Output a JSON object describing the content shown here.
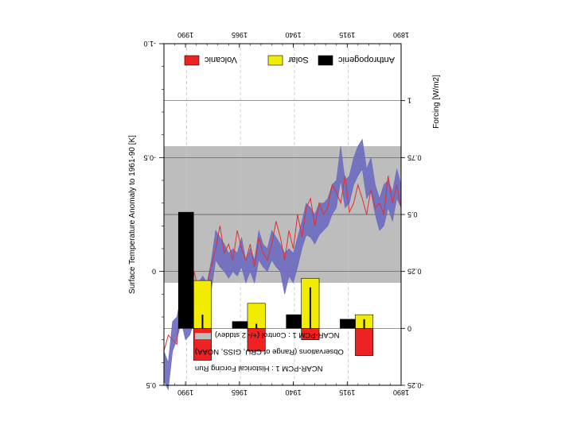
{
  "chart_data": {
    "type": "line",
    "orientation": "rotated-180",
    "x_range": [
      1890,
      2000
    ],
    "x_ticks": [
      "1890",
      "1915",
      "1940",
      "1965",
      "1990"
    ],
    "left_axis": {
      "label": "Surface Temperature Anomaly to 1961-90 [K]",
      "range": [
        -1.0,
        0.5
      ],
      "ticks": [
        "-1.0",
        "-0.5",
        "0",
        "0.5"
      ]
    },
    "right_axis": {
      "label": "Forcing [W/m2]",
      "range": [
        -0.25,
        1.25
      ],
      "ticks": [
        "-0.25",
        "0",
        "0.25",
        "0.5",
        "0.75",
        "1"
      ]
    },
    "control_band": {
      "range_k": [
        -0.55,
        0.05
      ],
      "color": "#bdbdbd"
    },
    "legend_top": [
      {
        "label": "Volcanic",
        "color": "#ee2222"
      },
      {
        "label": "Solar",
        "color": "#f2ec00"
      },
      {
        "label": "Anthropogenic",
        "color": "#000000"
      }
    ],
    "legend_bottom": [
      {
        "label": "NCAR-PCM 1 : Control (+/- 2 stddev)",
        "color": "#bdbdbd"
      },
      {
        "label": "Observations (Range of CRU, GISS, NOAA)",
        "color": "#6a6ac0"
      },
      {
        "label": "NCAR-PCM 1 : Historical Forcing Run",
        "color": "#e03030"
      }
    ],
    "forcing_periods": [
      {
        "start": 1900,
        "end": 1925,
        "volcanic": -0.12,
        "solar": 0.06,
        "anthropogenic": 0.04,
        "err": 0.04
      },
      {
        "start": 1925,
        "end": 1950,
        "volcanic": -0.05,
        "solar": 0.22,
        "anthropogenic": 0.06,
        "err": 0.18
      },
      {
        "start": 1950,
        "end": 1975,
        "volcanic": -0.1,
        "solar": 0.11,
        "anthropogenic": 0.03,
        "err": 0.02
      },
      {
        "start": 1975,
        "end": 2000,
        "volcanic": -0.14,
        "solar": 0.21,
        "anthropogenic": 0.51,
        "err": 0.06
      }
    ],
    "series": [
      {
        "name": "Observations (Range of CRU, GISS, NOAA)",
        "color": "#6a6ac0",
        "x": [
          1890,
          1892,
          1894,
          1896,
          1898,
          1900,
          1902,
          1904,
          1906,
          1908,
          1910,
          1912,
          1914,
          1916,
          1918,
          1920,
          1922,
          1924,
          1926,
          1928,
          1930,
          1932,
          1934,
          1936,
          1938,
          1940,
          1942,
          1944,
          1946,
          1948,
          1950,
          1952,
          1954,
          1956,
          1958,
          1960,
          1962,
          1964,
          1966,
          1968,
          1970,
          1972,
          1974,
          1976,
          1978,
          1980,
          1982,
          1984,
          1986,
          1988,
          1990,
          1992,
          1994,
          1996,
          1998,
          2000
        ],
        "low": [
          -0.38,
          -0.45,
          -0.35,
          -0.4,
          -0.38,
          -0.32,
          -0.38,
          -0.5,
          -0.45,
          -0.58,
          -0.55,
          -0.5,
          -0.42,
          -0.4,
          -0.55,
          -0.4,
          -0.38,
          -0.32,
          -0.3,
          -0.3,
          -0.25,
          -0.28,
          -0.3,
          -0.22,
          -0.15,
          -0.08,
          -0.1,
          -0.08,
          -0.12,
          -0.15,
          -0.18,
          -0.1,
          -0.12,
          -0.18,
          -0.05,
          -0.1,
          -0.05,
          -0.15,
          -0.08,
          -0.1,
          -0.08,
          -0.12,
          -0.15,
          -0.18,
          -0.05,
          0.05,
          0.02,
          0.05,
          0.1,
          0.15,
          0.18,
          0.1,
          0.2,
          0.22,
          0.4,
          0.35
        ],
        "high": [
          -0.28,
          -0.32,
          -0.22,
          -0.28,
          -0.2,
          -0.18,
          -0.25,
          -0.35,
          -0.32,
          -0.45,
          -0.42,
          -0.38,
          -0.3,
          -0.28,
          -0.4,
          -0.28,
          -0.25,
          -0.2,
          -0.18,
          -0.16,
          -0.12,
          -0.15,
          -0.16,
          -0.1,
          -0.02,
          0.05,
          0.02,
          0.1,
          0.0,
          -0.02,
          -0.05,
          0.0,
          -0.02,
          -0.05,
          0.05,
          0.0,
          0.05,
          -0.02,
          0.02,
          0.0,
          0.03,
          0.0,
          -0.02,
          -0.05,
          0.08,
          0.18,
          0.12,
          0.15,
          0.22,
          0.28,
          0.3,
          0.22,
          0.3,
          0.35,
          0.52,
          0.48
        ]
      },
      {
        "name": "NCAR-PCM 1 : Historical Forcing Run",
        "color": "#e03030",
        "x": [
          1890,
          1892,
          1894,
          1896,
          1898,
          1900,
          1902,
          1904,
          1906,
          1908,
          1910,
          1912,
          1914,
          1916,
          1918,
          1920,
          1922,
          1924,
          1926,
          1928,
          1930,
          1932,
          1934,
          1936,
          1938,
          1940,
          1942,
          1944,
          1946,
          1948,
          1950,
          1952,
          1954,
          1956,
          1958,
          1960,
          1962,
          1964,
          1966,
          1968,
          1970,
          1972,
          1974,
          1976,
          1978,
          1980,
          1982,
          1984,
          1986,
          1988,
          1990,
          1992,
          1994,
          1996,
          1998,
          2000
        ],
        "values": [
          -0.28,
          -0.38,
          -0.3,
          -0.42,
          -0.25,
          -0.3,
          -0.28,
          -0.36,
          -0.25,
          -0.32,
          -0.38,
          -0.3,
          -0.26,
          -0.42,
          -0.3,
          -0.35,
          -0.38,
          -0.28,
          -0.25,
          -0.3,
          -0.2,
          -0.32,
          -0.28,
          -0.15,
          -0.25,
          -0.1,
          -0.18,
          -0.05,
          -0.15,
          -0.22,
          -0.12,
          -0.05,
          -0.08,
          -0.15,
          -0.02,
          -0.12,
          -0.05,
          -0.1,
          -0.18,
          -0.05,
          -0.12,
          -0.08,
          -0.2,
          -0.1,
          -0.02,
          0.05,
          0.12,
          0.08,
          0.0,
          0.18,
          0.25,
          0.05,
          0.32,
          0.3,
          0.28,
          0.35
        ]
      }
    ]
  }
}
